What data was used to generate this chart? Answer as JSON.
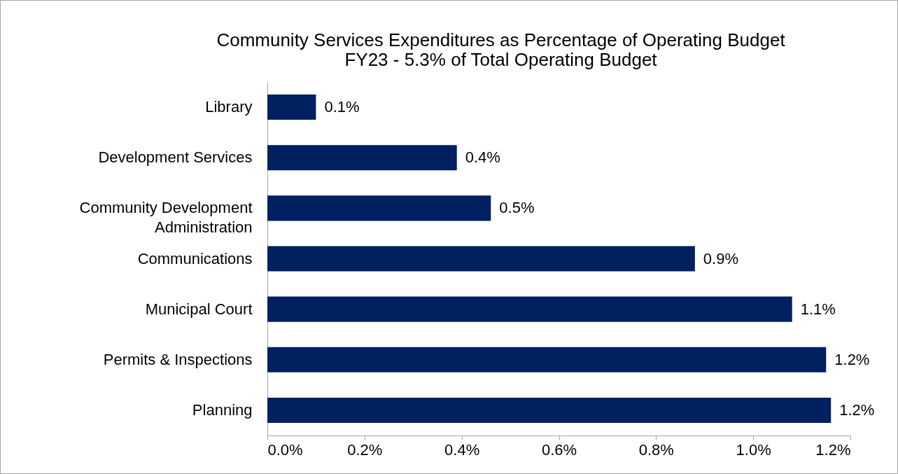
{
  "chart_data": {
    "type": "bar",
    "orientation": "horizontal",
    "title": "Community Services Expenditures as Percentage of Operating Budget",
    "subtitle": "FY23 - 5.3% of Total Operating Budget",
    "categories": [
      "Library",
      "Development Services",
      "Community Development\nAdministration",
      "Communications",
      "Municipal Court",
      "Permits & Inspections",
      "Planning"
    ],
    "values": [
      0.1,
      0.39,
      0.46,
      0.88,
      1.08,
      1.15,
      1.16
    ],
    "value_labels": [
      "0.1%",
      "0.4%",
      "0.5%",
      "0.9%",
      "1.1%",
      "1.2%",
      "1.2%"
    ],
    "color": "#002060",
    "xlim": [
      0,
      1.2
    ],
    "xticks": [
      {
        "value": 0,
        "label": "0.0%"
      },
      {
        "value": 0.2,
        "label": "0.2%"
      },
      {
        "value": 0.4,
        "label": "0.4%"
      },
      {
        "value": 0.6,
        "label": "0.6%"
      },
      {
        "value": 0.8,
        "label": "0.8%"
      },
      {
        "value": 1.0,
        "label": "1.0%"
      },
      {
        "value": 1.2,
        "label": "1.2%"
      }
    ],
    "grid": false
  }
}
